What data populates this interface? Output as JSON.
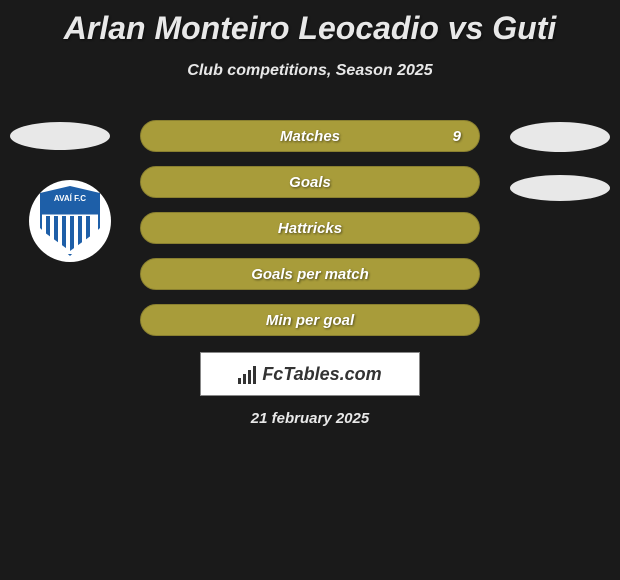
{
  "header": {
    "title": "Arlan Monteiro Leocadio vs Guti",
    "subtitle": "Club competitions, Season 2025"
  },
  "club": {
    "logo_text": "AVAÍ F.C"
  },
  "stats": [
    {
      "label": "Matches",
      "value": "9",
      "show_value": true
    },
    {
      "label": "Goals",
      "value": "",
      "show_value": false
    },
    {
      "label": "Hattricks",
      "value": "",
      "show_value": false
    },
    {
      "label": "Goals per match",
      "value": "",
      "show_value": false
    },
    {
      "label": "Min per goal",
      "value": "",
      "show_value": false
    }
  ],
  "branding": {
    "site_name": "FcTables.com"
  },
  "footer": {
    "date": "21 february 2025"
  },
  "colors": {
    "background": "#1a1a1a",
    "stat_bar": "#a89c3a",
    "text_light": "#e8e8e8",
    "club_blue": "#1e5fa8"
  }
}
